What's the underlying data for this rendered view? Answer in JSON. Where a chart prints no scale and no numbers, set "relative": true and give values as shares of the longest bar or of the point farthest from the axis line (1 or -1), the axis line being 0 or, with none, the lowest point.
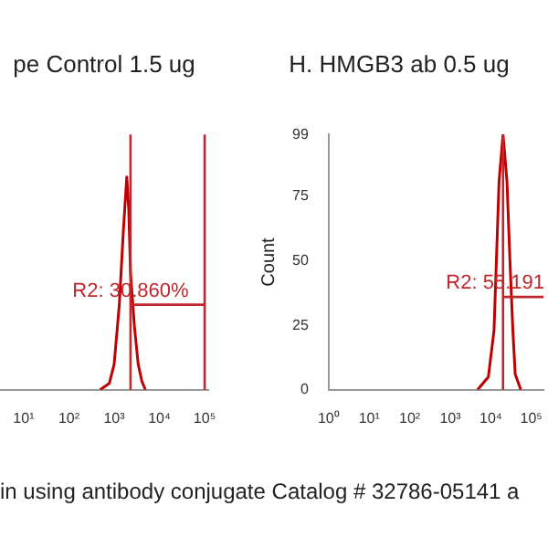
{
  "chart_data": [
    {
      "type": "line",
      "title": "pe Control 1.5 ug",
      "relative": true,
      "legend": false,
      "marker": "none",
      "log": "x",
      "xlim": [
        3,
        120000
      ],
      "xticks": [
        {
          "value": 10,
          "label": "10¹"
        },
        {
          "value": 100,
          "label": "10²"
        },
        {
          "value": 1000,
          "label": "10³"
        },
        {
          "value": 10000,
          "label": "10⁴"
        },
        {
          "value": 100000,
          "label": "10⁵"
        }
      ],
      "series": [
        {
          "color": "#c00000",
          "x": [
            490,
            780,
            1000,
            1300,
            1600,
            1900,
            2100,
            2300,
            2800,
            3400,
            4100,
            4900
          ],
          "values": [
            0,
            0.03,
            0.12,
            0.4,
            0.75,
            1,
            0.85,
            0.55,
            0.3,
            0.12,
            0.04,
            0
          ]
        }
      ],
      "ref_lines": [
        {
          "axis": "x",
          "value": 2300,
          "color": "#c0272d"
        },
        {
          "axis": "x",
          "value": 100000,
          "color": "#c0272d"
        }
      ],
      "annotations": [
        {
          "text": "R2: 30.860%",
          "x": 2300,
          "y": 0.4
        },
        "in using antibody conjugate Catalog # 32786-05141 a"
      ]
    },
    {
      "type": "line",
      "title": "H. HMGB3 ab 0.5 ug",
      "ylabel": "Count",
      "legend": false,
      "marker": "none",
      "log": "x",
      "xlim": [
        1,
        200000
      ],
      "xticks": [
        {
          "value": 1,
          "label": "10⁰"
        },
        {
          "value": 10,
          "label": "10¹"
        },
        {
          "value": 100,
          "label": "10²"
        },
        {
          "value": 1000,
          "label": "10³"
        },
        {
          "value": 10000,
          "label": "10⁴"
        },
        {
          "value": 100000,
          "label": "10⁵"
        }
      ],
      "ylim": [
        0,
        99
      ],
      "yticks": [
        0,
        25,
        50,
        75,
        99
      ],
      "series": [
        {
          "color": "#c00000",
          "x": [
            4700,
            8700,
            12000,
            16000,
            20000,
            25000,
            30000,
            35000,
            40000,
            55000
          ],
          "values": [
            0,
            5,
            23,
            81,
            99,
            81,
            48,
            23,
            6,
            0
          ]
        }
      ],
      "ref_lines": [
        {
          "axis": "x",
          "value": 20000,
          "color": "#c0272d"
        }
      ],
      "annotations": [
        {
          "text": "R2: 55.191",
          "x": 20000,
          "y": 36
        }
      ]
    }
  ]
}
